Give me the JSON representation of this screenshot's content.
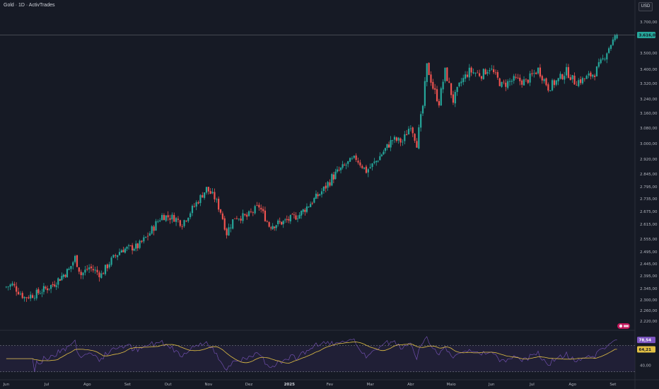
{
  "header": {
    "title": "Gold · 1D · ActivTrades",
    "currency": "USD"
  },
  "colors": {
    "background": "#161A25",
    "up": "#26A69A",
    "down": "#EF5350",
    "rsi_line": "#7E57C2",
    "rsi_ma": "#E2C044",
    "rsi_band": "#2A2545",
    "price_tag": "#26A69A",
    "rsi_tag": "#7E57C2",
    "rsi_ma_tag": "#E2C044",
    "event_badge": "#C2185B"
  },
  "chart_data": [
    {
      "type": "candlestick",
      "title": "Gold · 1D · ActivTrades",
      "y_ticks": [
        "3.700,00",
        "3.500,00",
        "3.400,00",
        "3.320,00",
        "3.240,00",
        "3.160,00",
        "3.080,00",
        "3.000,00",
        "2.920,00",
        "2.845,00",
        "2.795,00",
        "2.735,00",
        "2.675,00",
        "2.615,00",
        "2.555,00",
        "2.495,00",
        "2.445,00",
        "2.395,00",
        "2.345,00",
        "2.300,00",
        "2.260,00",
        "2.220,00"
      ],
      "x_ticks": [
        "Jun",
        "Jul",
        "Ago",
        "Set",
        "Out",
        "Nov",
        "Dez",
        "2025",
        "Fev",
        "Mar",
        "Abr",
        "Maio",
        "Jun",
        "Jul",
        "Ago",
        "Set"
      ],
      "x_bold": "2025",
      "last_price": "3.616,07",
      "anchors": [
        {
          "m": 0,
          "c": 2350
        },
        {
          "m": 0.2,
          "c": 2360
        },
        {
          "m": 0.5,
          "c": 2310
        },
        {
          "m": 0.8,
          "c": 2325
        },
        {
          "m": 1.2,
          "c": 2360
        },
        {
          "m": 1.6,
          "c": 2420
        },
        {
          "m": 1.75,
          "c": 2470
        },
        {
          "m": 1.9,
          "c": 2400
        },
        {
          "m": 2.1,
          "c": 2430
        },
        {
          "m": 2.4,
          "c": 2400
        },
        {
          "m": 2.6,
          "c": 2450
        },
        {
          "m": 2.9,
          "c": 2505
        },
        {
          "m": 3.3,
          "c": 2520
        },
        {
          "m": 3.6,
          "c": 2580
        },
        {
          "m": 3.9,
          "c": 2655
        },
        {
          "m": 4.2,
          "c": 2645
        },
        {
          "m": 4.4,
          "c": 2620
        },
        {
          "m": 4.7,
          "c": 2700
        },
        {
          "m": 5.0,
          "c": 2785
        },
        {
          "m": 5.2,
          "c": 2740
        },
        {
          "m": 5.35,
          "c": 2675
        },
        {
          "m": 5.5,
          "c": 2580
        },
        {
          "m": 5.7,
          "c": 2650
        },
        {
          "m": 6.0,
          "c": 2650
        },
        {
          "m": 6.3,
          "c": 2700
        },
        {
          "m": 6.55,
          "c": 2610
        },
        {
          "m": 6.9,
          "c": 2625
        },
        {
          "m": 7.3,
          "c": 2660
        },
        {
          "m": 7.8,
          "c": 2760
        },
        {
          "m": 8.1,
          "c": 2830
        },
        {
          "m": 8.5,
          "c": 2900
        },
        {
          "m": 8.7,
          "c": 2925
        },
        {
          "m": 8.95,
          "c": 2860
        },
        {
          "m": 9.2,
          "c": 2910
        },
        {
          "m": 9.6,
          "c": 3020
        },
        {
          "m": 9.85,
          "c": 3010
        },
        {
          "m": 10.05,
          "c": 3100
        },
        {
          "m": 10.2,
          "c": 3000
        },
        {
          "m": 10.35,
          "c": 3200
        },
        {
          "m": 10.45,
          "c": 3420
        },
        {
          "m": 10.6,
          "c": 3300
        },
        {
          "m": 10.75,
          "c": 3220
        },
        {
          "m": 10.9,
          "c": 3390
        },
        {
          "m": 11.1,
          "c": 3230
        },
        {
          "m": 11.3,
          "c": 3330
        },
        {
          "m": 11.5,
          "c": 3390
        },
        {
          "m": 11.8,
          "c": 3370
        },
        {
          "m": 12.0,
          "c": 3410
        },
        {
          "m": 12.3,
          "c": 3310
        },
        {
          "m": 12.6,
          "c": 3340
        },
        {
          "m": 12.9,
          "c": 3330
        },
        {
          "m": 13.2,
          "c": 3400
        },
        {
          "m": 13.45,
          "c": 3300
        },
        {
          "m": 13.7,
          "c": 3340
        },
        {
          "m": 13.9,
          "c": 3390
        },
        {
          "m": 14.1,
          "c": 3330
        },
        {
          "m": 14.3,
          "c": 3340
        },
        {
          "m": 14.6,
          "c": 3380
        },
        {
          "m": 14.8,
          "c": 3460
        },
        {
          "m": 15.0,
          "c": 3560
        },
        {
          "m": 15.15,
          "c": 3616
        }
      ]
    },
    {
      "type": "line",
      "title": "RSI",
      "y_ticks": [
        "40,00"
      ],
      "rsi_value": "78,54",
      "rsi_ma_value": "64,21",
      "levels": [
        70,
        30
      ],
      "ylim": [
        20,
        90
      ]
    }
  ]
}
